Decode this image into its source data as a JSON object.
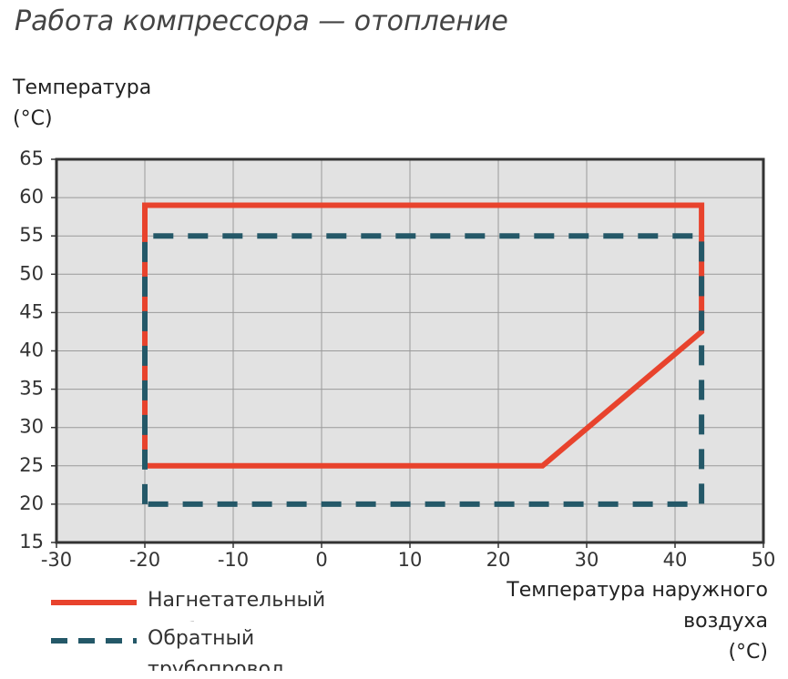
{
  "chart_data": {
    "type": "line",
    "title": "Работа компрессора — отопление",
    "ylabel": [
      "Температура",
      "(°C)"
    ],
    "xlabel": [
      "Температура наружного",
      "воздуха",
      "(°C)"
    ],
    "xlim": [
      -30,
      50
    ],
    "xticks": [
      -30,
      -20,
      -10,
      0,
      10,
      20,
      30,
      40,
      50
    ],
    "ylim": [
      15,
      65
    ],
    "yticks": [
      15,
      20,
      25,
      30,
      35,
      40,
      45,
      50,
      55,
      60,
      65
    ],
    "grid": true,
    "series": [
      {
        "name": "Нагнетательный трубопровод",
        "color": "#e8432d",
        "dash": false,
        "x": [
          -20,
          -20,
          43,
          43,
          25,
          -20
        ],
        "y": [
          25,
          59,
          59,
          42.5,
          25,
          25
        ]
      },
      {
        "name": "Обратный трубопровод",
        "color": "#245868",
        "dash": true,
        "x": [
          -20,
          -20,
          43,
          43,
          -20
        ],
        "y": [
          20,
          55,
          55,
          20,
          20
        ]
      }
    ]
  }
}
